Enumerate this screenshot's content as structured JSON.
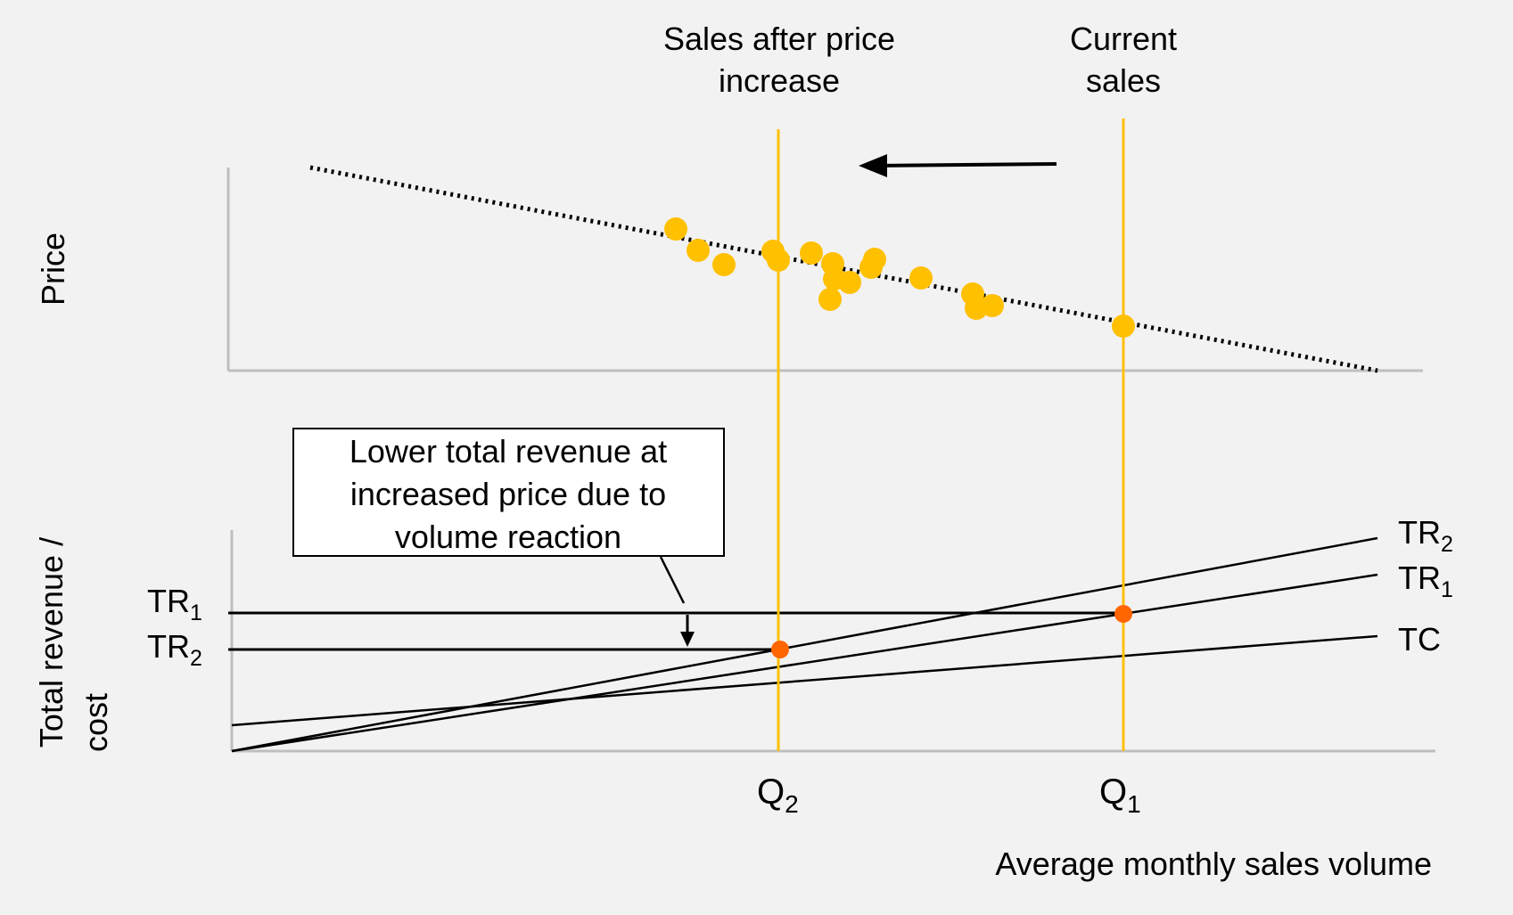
{
  "labels": {
    "sales_after_price_increase": [
      "Sales after price",
      "increase"
    ],
    "current_sales": [
      "Current",
      "sales"
    ],
    "price_axis": "Price",
    "revenue_axis": [
      "Total revenue /",
      "cost"
    ],
    "x_axis": "Average monthly sales volume",
    "callout": [
      "Lower total revenue at",
      "increased price due to",
      "volume reaction"
    ]
  },
  "series": {
    "tr2": {
      "main": "TR",
      "sub": "2"
    },
    "tr1": {
      "main": "TR",
      "sub": "1"
    },
    "tc": "TC"
  },
  "markers": {
    "q2": {
      "main": "Q",
      "sub": "2"
    },
    "q1": {
      "main": "Q",
      "sub": "1"
    }
  },
  "colors": {
    "background": "#f2f2f2",
    "axis": "#bfbfbf",
    "vertical_marker": "#ffc000",
    "scatter_point": "#ffc000",
    "intersection_point": "#ff6600",
    "line": "#000000"
  }
}
